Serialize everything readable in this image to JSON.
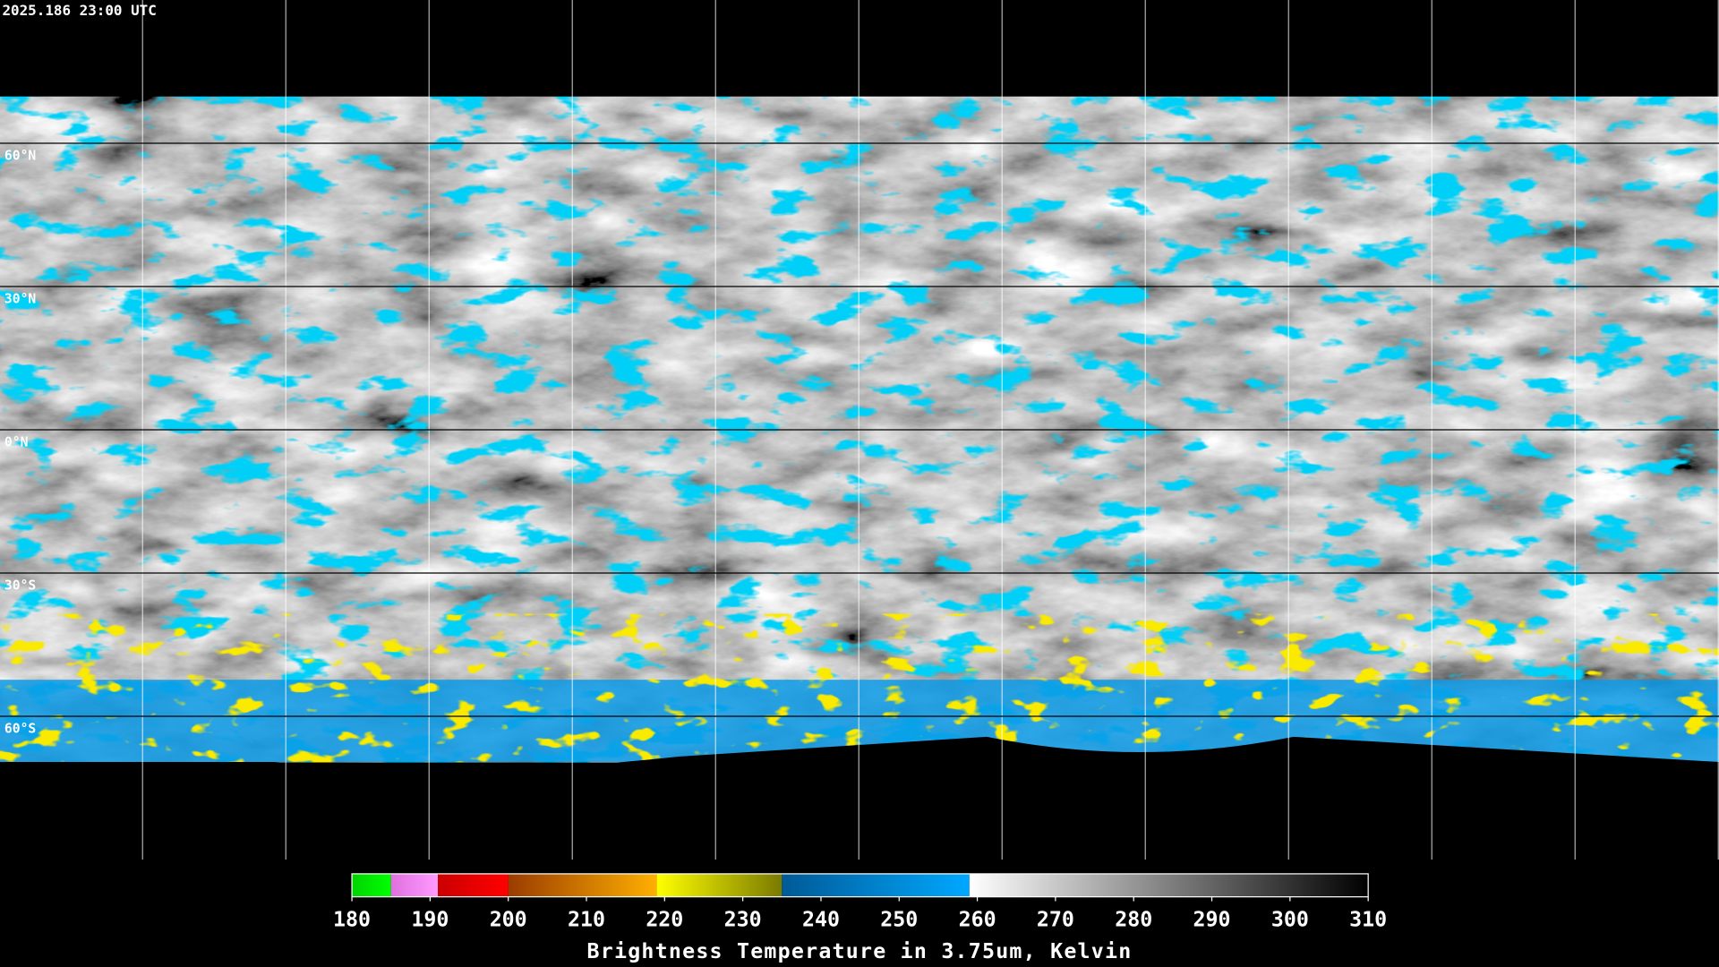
{
  "map": {
    "timestamp": "2025.186 23:00 UTC",
    "lat_lines": [
      {
        "value": 60,
        "label": "60°N"
      },
      {
        "value": 30,
        "label": "30°N"
      },
      {
        "value": 0,
        "label": "0°N"
      },
      {
        "value": -30,
        "label": "30°S"
      },
      {
        "value": -60,
        "label": "60°S"
      }
    ],
    "colorbar": {
      "title": "Brightness Temperature in 3.75um, Kelvin",
      "lim": [
        180,
        310
      ],
      "ticks": [
        180,
        190,
        200,
        210,
        220,
        230,
        240,
        250,
        260,
        270,
        280,
        290,
        300,
        310
      ],
      "segments": [
        {
          "from": 180,
          "to": 185,
          "colors": [
            "#00d400",
            "#00ff00"
          ]
        },
        {
          "from": 185,
          "to": 191,
          "colors": [
            "#e070e0",
            "#ff9aff"
          ]
        },
        {
          "from": 191,
          "to": 200,
          "colors": [
            "#cc0000",
            "#ff0000"
          ]
        },
        {
          "from": 200,
          "to": 219,
          "colors": [
            "#9a3c00",
            "#ffb000"
          ]
        },
        {
          "from": 219,
          "to": 235,
          "colors": [
            "#ffff00",
            "#7a7a00"
          ]
        },
        {
          "from": 235,
          "to": 259,
          "colors": [
            "#005a96",
            "#00a8ff"
          ]
        },
        {
          "from": 259,
          "to": 310,
          "colors": [
            "#ffffff",
            "#000000"
          ]
        }
      ]
    }
  }
}
